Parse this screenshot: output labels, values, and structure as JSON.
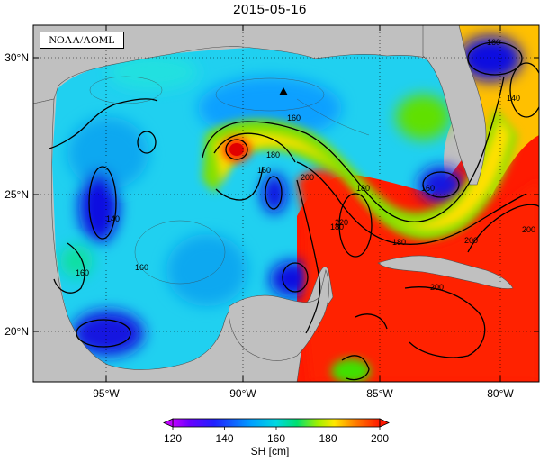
{
  "title": "2015-05-16",
  "credit": "NOAA/AOML",
  "map": {
    "lon_ticks": [
      "95°W",
      "90°W",
      "85°W",
      "80°W"
    ],
    "lat_ticks": [
      "30°N",
      "25°N",
      "20°N"
    ],
    "contour_labels": [
      "160",
      "160",
      "180",
      "160",
      "200",
      "180",
      "160",
      "140",
      "140",
      "160",
      "180",
      "160",
      "200",
      "200",
      "220",
      "180",
      "200"
    ],
    "marker": "triangle"
  },
  "colorbar": {
    "label": "SH [cm]",
    "ticks": [
      "120",
      "140",
      "160",
      "180",
      "200"
    ],
    "colors": [
      "#c000ff",
      "#3000ff",
      "#0060ff",
      "#00c8ff",
      "#00e0a0",
      "#60e000",
      "#f0f000",
      "#ffa000",
      "#ff3000",
      "#ff0000"
    ]
  },
  "colors": {
    "land": "#c0c0c0",
    "cold_core": "#1010e0",
    "shelf": "#10d8f0",
    "loop_current": "#ff0000",
    "contour": "#000000"
  }
}
